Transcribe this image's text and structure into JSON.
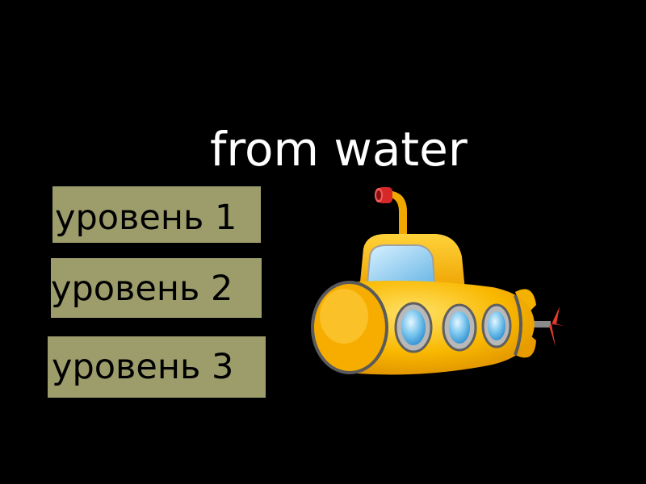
{
  "title": "from water",
  "levels": [
    {
      "label": "уровень 1"
    },
    {
      "label": "уровень 2"
    },
    {
      "label": "уровень 3"
    }
  ],
  "image": {
    "icon": "yellow-submarine-icon"
  },
  "colors": {
    "background": "#000000",
    "title": "#ffffff",
    "button_bg": "#9d9d6c",
    "button_text": "#000000",
    "submarine_body": "#f9b800",
    "porthole_glass": "#7ec8ef",
    "periscope_cap": "#d62828"
  }
}
